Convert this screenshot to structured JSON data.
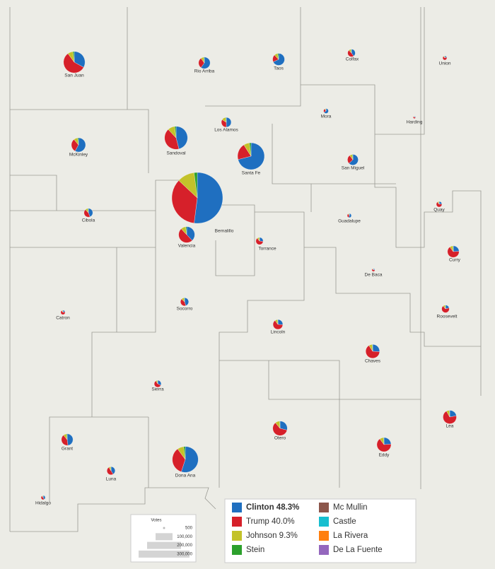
{
  "map": {
    "series": [
      {
        "name": "Clinton 48.3%",
        "color": "#1f6fc0"
      },
      {
        "name": "Trump 40.0%",
        "color": "#d6202a"
      },
      {
        "name": "Johnson 9.3%",
        "color": "#c3c22a"
      },
      {
        "name": "Stein",
        "color": "#2ca02c"
      },
      {
        "name": "Mc Mullin",
        "color": "#8c564b"
      },
      {
        "name": "Castle",
        "color": "#17becf"
      },
      {
        "name": "La Rivera",
        "color": "#ff7f0e"
      },
      {
        "name": "De La Fuente",
        "color": "#9467bd"
      }
    ],
    "counties": [
      {
        "name": "San Juan",
        "votes": 48000,
        "shares": [
          33,
          57,
          8,
          2
        ]
      },
      {
        "name": "Rio Arriba",
        "votes": 14000,
        "shares": [
          60,
          30,
          8,
          2
        ]
      },
      {
        "name": "Taos",
        "votes": 15000,
        "shares": [
          68,
          20,
          9,
          3
        ]
      },
      {
        "name": "Colfax",
        "votes": 6000,
        "shares": [
          40,
          48,
          10,
          2
        ]
      },
      {
        "name": "Union",
        "votes": 1800,
        "shares": [
          18,
          72,
          9,
          1
        ]
      },
      {
        "name": "Mora",
        "votes": 2500,
        "shares": [
          65,
          27,
          7,
          1
        ]
      },
      {
        "name": "Harding",
        "votes": 600,
        "shares": [
          25,
          65,
          9,
          1
        ]
      },
      {
        "name": "Los Alamos",
        "votes": 10000,
        "shares": [
          50,
          34,
          14,
          2
        ]
      },
      {
        "name": "Sandoval",
        "votes": 55000,
        "shares": [
          46,
          42,
          10,
          2
        ]
      },
      {
        "name": "McKinley",
        "votes": 21000,
        "shares": [
          58,
          31,
          9,
          2
        ]
      },
      {
        "name": "Santa Fe",
        "votes": 75000,
        "shares": [
          71,
          20,
          7,
          2
        ]
      },
      {
        "name": "San Miguel",
        "votes": 12000,
        "shares": [
          63,
          27,
          8,
          2
        ]
      },
      {
        "name": "Bernalillo",
        "votes": 270000,
        "shares": [
          52,
          35,
          11,
          2
        ]
      },
      {
        "name": "Cibola",
        "votes": 8000,
        "shares": [
          44,
          44,
          10,
          2
        ]
      },
      {
        "name": "Valencia",
        "votes": 27000,
        "shares": [
          38,
          50,
          10,
          2
        ]
      },
      {
        "name": "Torrance",
        "votes": 5500,
        "shares": [
          27,
          62,
          10,
          1
        ]
      },
      {
        "name": "Guadalupe",
        "votes": 1800,
        "shares": [
          55,
          36,
          8,
          1
        ]
      },
      {
        "name": "Quay",
        "votes": 3300,
        "shares": [
          23,
          67,
          9,
          1
        ]
      },
      {
        "name": "Curry",
        "votes": 14000,
        "shares": [
          24,
          66,
          9,
          1
        ]
      },
      {
        "name": "De Baca",
        "votes": 900,
        "shares": [
          22,
          69,
          8,
          1
        ]
      },
      {
        "name": "Roosevelt",
        "votes": 6000,
        "shares": [
          21,
          68,
          10,
          1
        ]
      },
      {
        "name": "Catron",
        "votes": 2000,
        "shares": [
          20,
          72,
          7,
          1
        ]
      },
      {
        "name": "Socorro",
        "votes": 7000,
        "shares": [
          45,
          42,
          11,
          2
        ]
      },
      {
        "name": "Lincoln",
        "votes": 10000,
        "shares": [
          26,
          64,
          9,
          1
        ]
      },
      {
        "name": "Chaves",
        "votes": 20000,
        "shares": [
          26,
          65,
          8,
          1
        ]
      },
      {
        "name": "Sierra",
        "votes": 5000,
        "shares": [
          32,
          59,
          8,
          1
        ]
      },
      {
        "name": "Grant",
        "votes": 14000,
        "shares": [
          48,
          41,
          9,
          2
        ]
      },
      {
        "name": "Otero",
        "votes": 22000,
        "shares": [
          29,
          60,
          10,
          1
        ]
      },
      {
        "name": "Eddy",
        "votes": 21000,
        "shares": [
          24,
          66,
          9,
          1
        ]
      },
      {
        "name": "Lea",
        "votes": 19000,
        "shares": [
          22,
          70,
          7,
          1
        ]
      },
      {
        "name": "Luna",
        "votes": 7000,
        "shares": [
          41,
          50,
          8,
          1
        ]
      },
      {
        "name": "Dona Ana",
        "votes": 70000,
        "shares": [
          55,
          35,
          8,
          2
        ]
      },
      {
        "name": "Hidalgo",
        "votes": 1800,
        "shares": [
          42,
          49,
          8,
          1
        ]
      }
    ],
    "votes_legend": {
      "title": "Votes",
      "items": [
        {
          "value": 500,
          "label": "500"
        },
        {
          "value": 100000,
          "label": "100,000"
        },
        {
          "value": 200000,
          "label": "200,000"
        },
        {
          "value": 300000,
          "label": "300,000"
        }
      ]
    }
  }
}
